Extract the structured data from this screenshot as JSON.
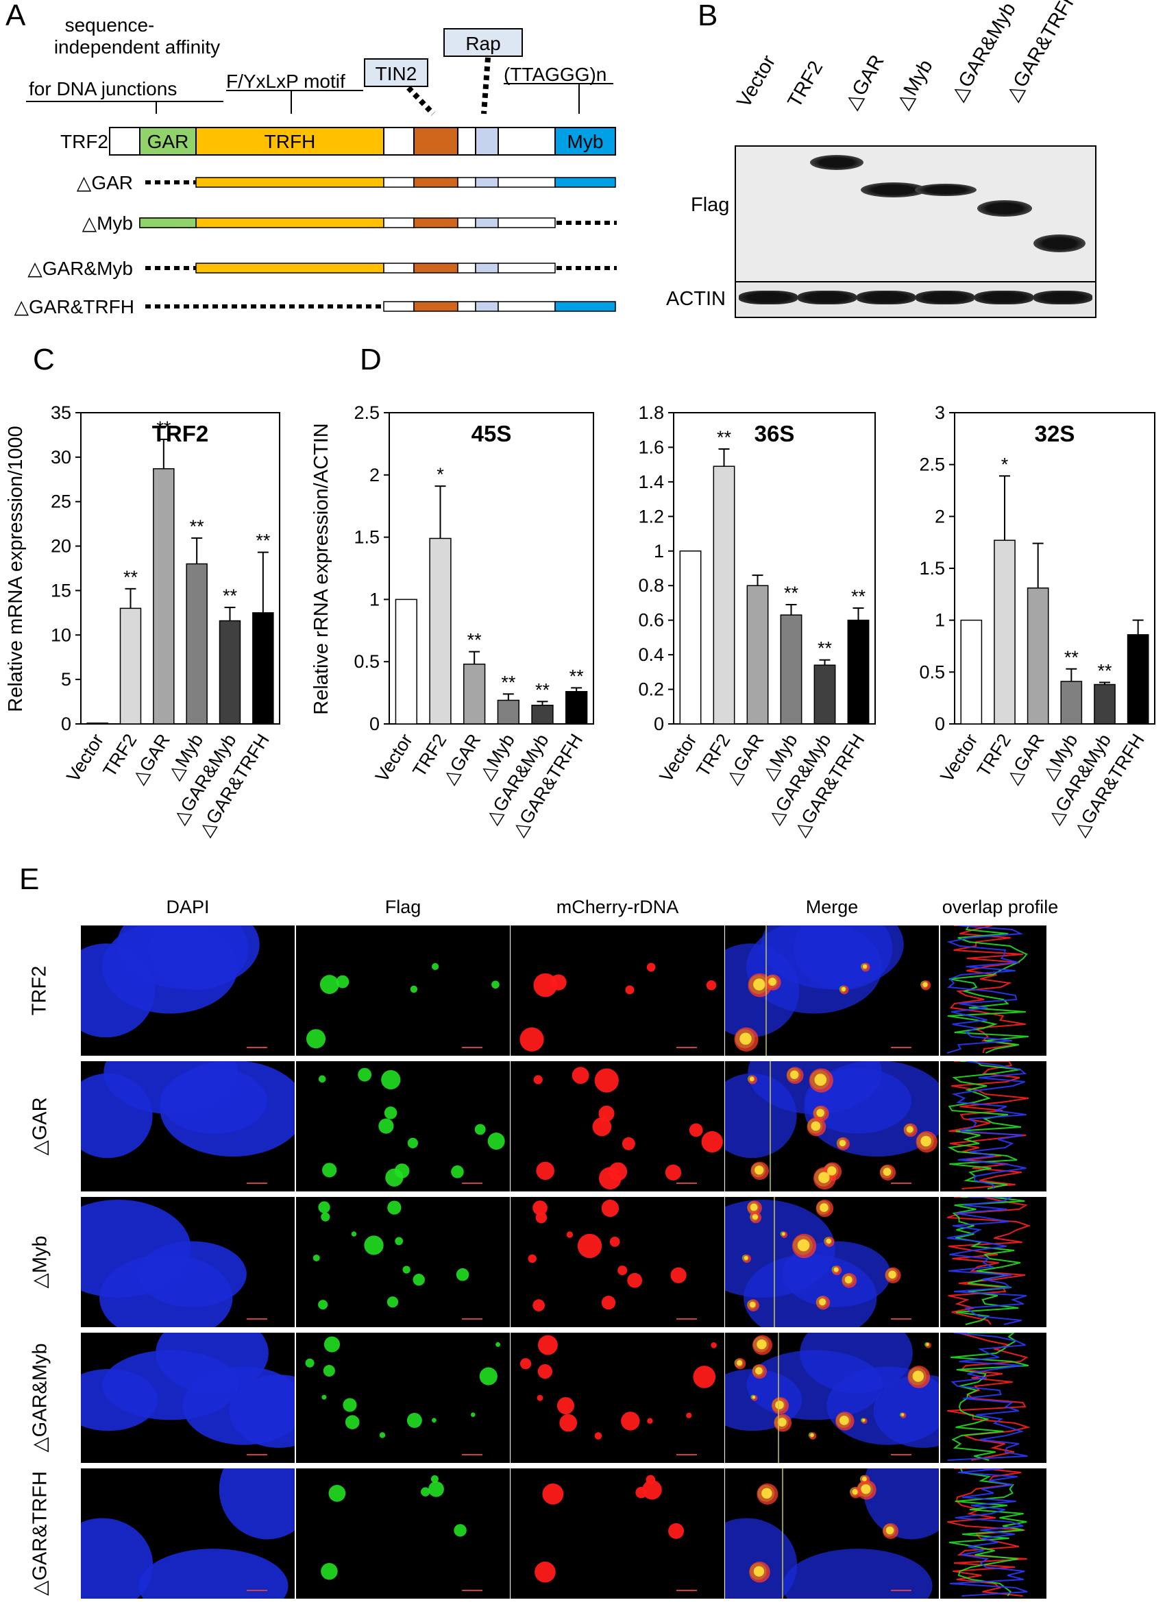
{
  "panels": {
    "a": "A",
    "b": "B",
    "c": "C",
    "d": "D",
    "e": "E"
  },
  "schematic": {
    "annotations": {
      "gar": [
        "sequence-",
        "independent affinity",
        "for DNA junctions"
      ],
      "trfh": "F/YxLxP motif",
      "tin2": "TIN2",
      "rap": "Rap",
      "myb": "(TTAGGG)n"
    },
    "constructs": [
      "TRF2",
      "△GAR",
      "△Myb",
      "△GAR&Myb",
      "△GAR&TRFH"
    ],
    "domains": {
      "gar": "GAR",
      "trfh": "TRFH",
      "myb": "Myb"
    },
    "colors": {
      "gar": "#8fd36a",
      "trfh": "#ffc000",
      "tin2": "#d0661c",
      "rap": "#c5d3ef",
      "myb": "#00a0e6"
    }
  },
  "blot": {
    "lanes": [
      "Vector",
      "TRF2",
      "△GAR",
      "△Myb",
      "△GAR&Myb",
      "△GAR&TRFH"
    ],
    "rows": [
      "Flag",
      "ACTIN"
    ]
  },
  "charts": {
    "categories": [
      "Vector",
      "TRF2",
      "△GAR",
      "△Myb",
      "△GAR&Myb",
      "△GAR&TRFH"
    ],
    "bar_colors": [
      "#ffffff",
      "#d9d9d9",
      "#a6a6a6",
      "#808080",
      "#404040",
      "#000000"
    ],
    "ylabel_c": "Relative mRNA expression/1000",
    "ylabel_d": "Relative rRNA expression/ACTIN"
  },
  "chart_data": [
    {
      "type": "bar",
      "title": "TRF2",
      "ylim": [
        0,
        35
      ],
      "ticks": [
        "0",
        "5",
        "10",
        "15",
        "20",
        "25",
        "30",
        "35"
      ],
      "values": [
        0.1,
        13,
        28.7,
        18,
        11.6,
        12.5
      ],
      "errors": [
        0,
        2.2,
        3.3,
        2.9,
        1.5,
        6.8
      ],
      "sig": [
        "",
        "**",
        "**",
        "**",
        "**",
        "**"
      ]
    },
    {
      "type": "bar",
      "title": "45S",
      "ylim": [
        0,
        2.5
      ],
      "ticks": [
        "0",
        "0.5",
        "1",
        "1.5",
        "2",
        "2.5"
      ],
      "values": [
        1,
        1.49,
        0.48,
        0.19,
        0.15,
        0.26
      ],
      "errors": [
        0,
        0.42,
        0.1,
        0.05,
        0.03,
        0.03
      ],
      "sig": [
        "",
        "*",
        "**",
        "**",
        "**",
        "**"
      ]
    },
    {
      "type": "bar",
      "title": "36S",
      "ylim": [
        0,
        1.8
      ],
      "ticks": [
        "0",
        "0.2",
        "0.4",
        "0.6",
        "0.8",
        "1",
        "1.2",
        "1.4",
        "1.6",
        "1.8"
      ],
      "values": [
        1,
        1.49,
        0.8,
        0.63,
        0.34,
        0.6
      ],
      "errors": [
        0,
        0.1,
        0.06,
        0.06,
        0.03,
        0.07
      ],
      "sig": [
        "",
        "**",
        "",
        "**",
        "**",
        "**"
      ]
    },
    {
      "type": "bar",
      "title": "32S",
      "ylim": [
        0,
        3
      ],
      "ticks": [
        "0",
        "0.5",
        "1",
        "1.5",
        "2",
        "2.5",
        "3"
      ],
      "values": [
        1,
        1.77,
        1.31,
        0.41,
        0.38,
        0.86
      ],
      "errors": [
        0,
        0.62,
        0.43,
        0.12,
        0.02,
        0.14
      ],
      "sig": [
        "",
        "*",
        "",
        "**",
        "**",
        ""
      ]
    }
  ],
  "imaging": {
    "columns": [
      "DAPI",
      "Flag",
      "mCherry-rDNA",
      "Merge",
      "overlap profile"
    ],
    "rows": [
      "TRF2",
      "△GAR",
      "△Myb",
      "△GAR&Myb",
      "△GAR&TRFH"
    ]
  }
}
